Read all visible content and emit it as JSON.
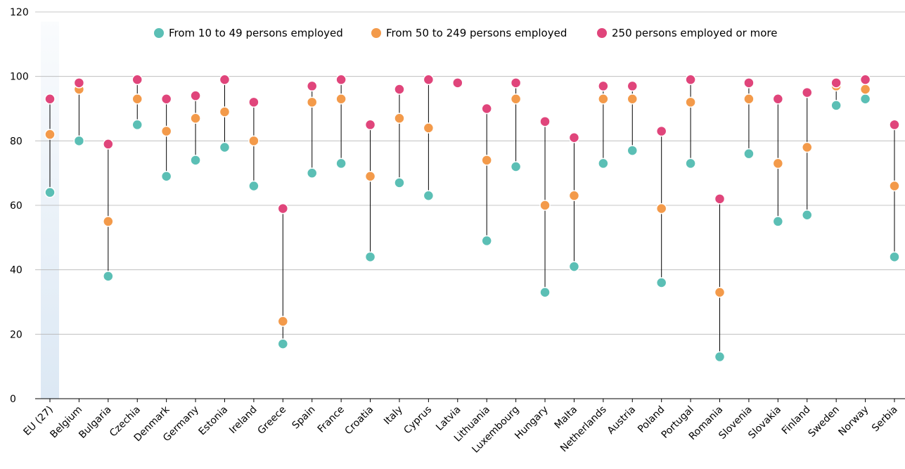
{
  "chart_data": {
    "type": "scatter",
    "title": "",
    "xlabel": "",
    "ylabel": "",
    "ylim": [
      0,
      120
    ],
    "yticks": [
      0,
      20,
      40,
      60,
      80,
      100,
      120
    ],
    "grid": true,
    "legend_position": "top",
    "highlight_category": "EU (27)",
    "highlight_color": "#dce8f4",
    "categories": [
      "EU (27)",
      "Belgium",
      "Bulgaria",
      "Czechia",
      "Denmark",
      "Germany",
      "Estonia",
      "Ireland",
      "Greece",
      "Spain",
      "France",
      "Croatia",
      "Italy",
      "Cyprus",
      "Latvia",
      "Lithuania",
      "Luxembourg",
      "Hungary",
      "Malta",
      "Netherlands",
      "Austria",
      "Poland",
      "Portugal",
      "Romania",
      "Slovenia",
      "Slovakia",
      "Finland",
      "Sweden",
      "Norway",
      "Serbia"
    ],
    "series": [
      {
        "name": "From 10 to 49 persons employed",
        "color": "#5bbfb5",
        "values": [
          64,
          80,
          38,
          85,
          69,
          74,
          78,
          66,
          17,
          70,
          73,
          44,
          67,
          63,
          98,
          49,
          72,
          33,
          41,
          73,
          77,
          36,
          73,
          13,
          76,
          55,
          57,
          91,
          93,
          44
        ]
      },
      {
        "name": "From 50 to 249 persons employed",
        "color": "#f39a4a",
        "values": [
          82,
          96,
          55,
          93,
          83,
          87,
          89,
          80,
          24,
          92,
          93,
          69,
          87,
          84,
          98,
          74,
          93,
          60,
          63,
          93,
          93,
          59,
          92,
          33,
          93,
          73,
          78,
          97,
          96,
          66
        ]
      },
      {
        "name": "250 persons employed or more",
        "color": "#e0457b",
        "values": [
          93,
          98,
          79,
          99,
          93,
          94,
          99,
          92,
          59,
          97,
          99,
          85,
          96,
          99,
          98,
          90,
          98,
          86,
          81,
          97,
          97,
          83,
          99,
          62,
          98,
          93,
          95,
          98,
          99,
          85
        ]
      }
    ]
  }
}
